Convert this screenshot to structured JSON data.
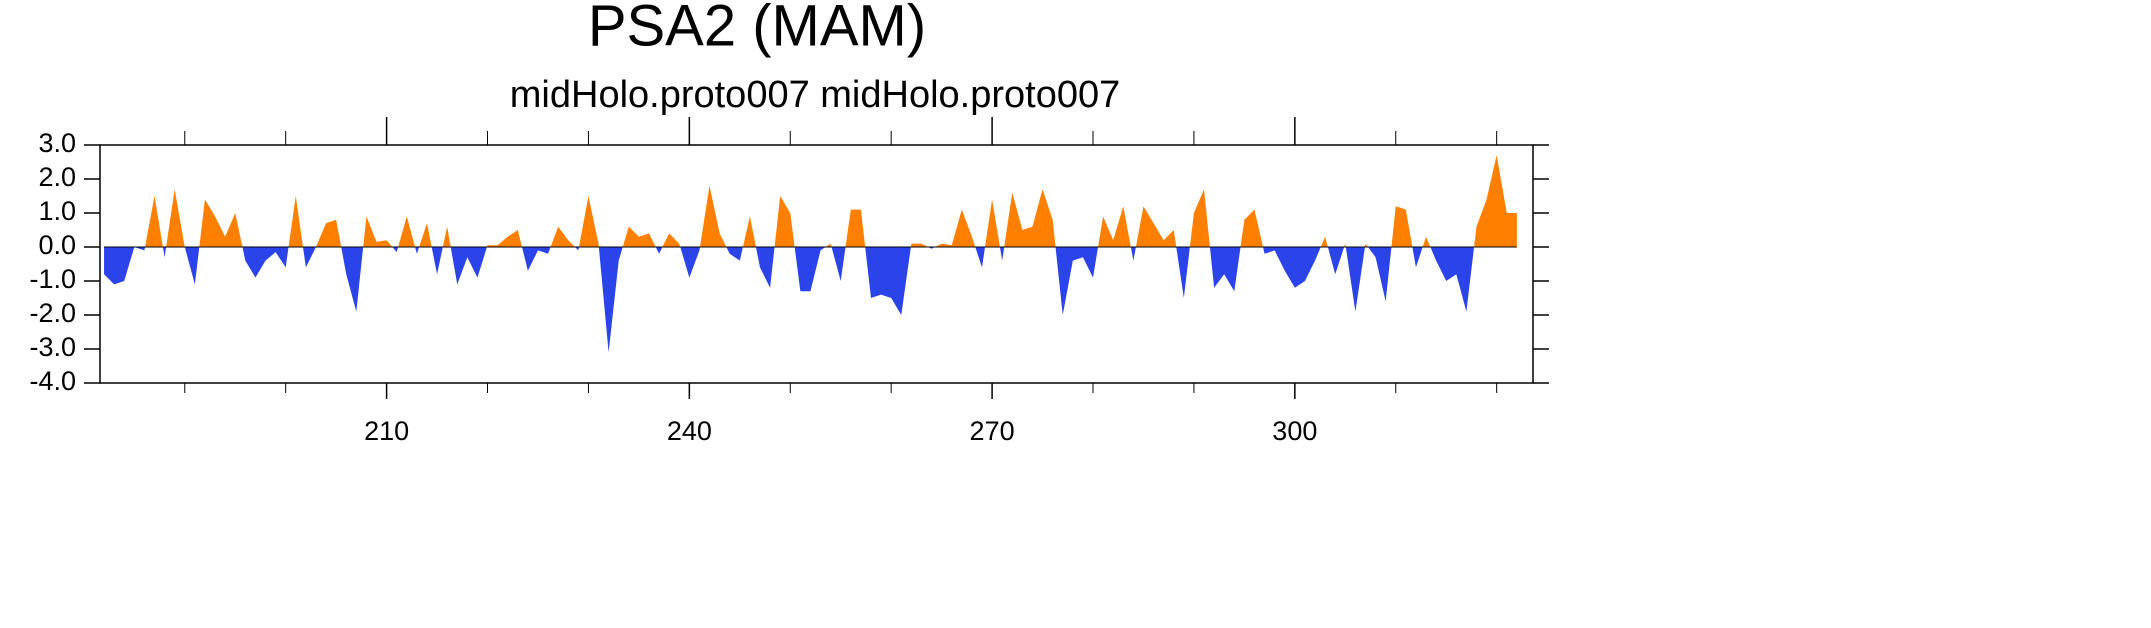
{
  "chart_data": {
    "type": "area",
    "title": "PSA2 (MAM)",
    "subtitle": "midHolo.proto007  midHolo.proto007",
    "x": [
      182,
      183,
      184,
      185,
      186,
      187,
      188,
      189,
      190,
      191,
      192,
      193,
      194,
      195,
      196,
      197,
      198,
      199,
      200,
      201,
      202,
      203,
      204,
      205,
      206,
      207,
      208,
      209,
      210,
      211,
      212,
      213,
      214,
      215,
      216,
      217,
      218,
      219,
      220,
      221,
      222,
      223,
      224,
      225,
      226,
      227,
      228,
      229,
      230,
      231,
      232,
      233,
      234,
      235,
      236,
      237,
      238,
      239,
      240,
      241,
      242,
      243,
      244,
      245,
      246,
      247,
      248,
      249,
      250,
      251,
      252,
      253,
      254,
      255,
      256,
      257,
      258,
      259,
      260,
      261,
      262,
      263,
      264,
      265,
      266,
      267,
      268,
      269,
      270,
      271,
      272,
      273,
      274,
      275,
      276,
      277,
      278,
      279,
      280,
      281,
      282,
      283,
      284,
      285,
      286,
      287,
      288,
      289,
      290,
      291,
      292,
      293,
      294,
      295,
      296,
      297,
      298,
      299,
      300,
      301,
      302,
      303,
      304,
      305,
      306,
      307,
      308,
      309,
      310,
      311,
      312,
      313,
      314,
      315,
      316,
      317,
      318,
      319,
      320,
      321,
      322
    ],
    "values": [
      -0.8,
      -1.1,
      -1.0,
      0.0,
      -0.1,
      1.5,
      -0.3,
      1.7,
      0.0,
      -1.1,
      1.4,
      0.9,
      0.3,
      1.0,
      -0.4,
      -0.9,
      -0.4,
      -0.15,
      -0.6,
      1.5,
      -0.6,
      0.0,
      0.7,
      0.8,
      -0.8,
      -1.9,
      0.9,
      0.15,
      0.2,
      -0.15,
      0.9,
      -0.2,
      0.7,
      -0.8,
      0.6,
      -1.1,
      -0.3,
      -0.9,
      0.05,
      0.05,
      0.3,
      0.5,
      -0.7,
      -0.1,
      -0.2,
      0.6,
      0.2,
      -0.1,
      1.5,
      0.1,
      -3.1,
      -0.4,
      0.6,
      0.3,
      0.4,
      -0.2,
      0.4,
      0.1,
      -0.9,
      -0.1,
      1.8,
      0.4,
      -0.2,
      -0.4,
      0.9,
      -0.6,
      -1.2,
      1.5,
      1.0,
      -1.3,
      -1.3,
      -0.1,
      0.1,
      -1.0,
      1.1,
      1.1,
      -1.5,
      -1.4,
      -1.5,
      -2.0,
      0.1,
      0.1,
      -0.05,
      0.1,
      0.05,
      1.1,
      0.3,
      -0.6,
      1.4,
      -0.4,
      1.6,
      0.5,
      0.6,
      1.7,
      0.8,
      -2.0,
      -0.4,
      -0.3,
      -0.9,
      0.9,
      0.2,
      1.2,
      -0.4,
      1.2,
      0.7,
      0.2,
      0.5,
      -1.5,
      1.0,
      1.7,
      -1.2,
      -0.8,
      -1.3,
      0.8,
      1.1,
      -0.2,
      -0.1,
      -0.7,
      -1.2,
      -1.0,
      -0.4,
      0.3,
      -0.8,
      0.1,
      -1.9,
      0.1,
      -0.3,
      -1.6,
      1.2,
      1.1,
      -0.6,
      0.3,
      -0.4,
      -1.0,
      -0.8,
      -1.9,
      0.6,
      1.4,
      2.7,
      1.0,
      1.0
    ],
    "above_color": "#ff8000",
    "below_color": "#2b44ea",
    "xlim": [
      181.6,
      323.6
    ],
    "xticks": [
      210,
      240,
      270,
      300
    ],
    "xminor_ticks": [
      190,
      200,
      220,
      230,
      250,
      260,
      280,
      290,
      310,
      320
    ],
    "ylim": [
      -4,
      3
    ],
    "yticks": [
      {
        "value": -4,
        "label": "-4.0"
      },
      {
        "value": -3,
        "label": "-3.0"
      },
      {
        "value": -2,
        "label": "-2.0"
      },
      {
        "value": -1,
        "label": "-1.0"
      },
      {
        "value": 0,
        "label": "0.0"
      },
      {
        "value": 1,
        "label": "1.0"
      },
      {
        "value": 2,
        "label": "2.0"
      },
      {
        "value": 3,
        "label": "3.0"
      }
    ]
  }
}
